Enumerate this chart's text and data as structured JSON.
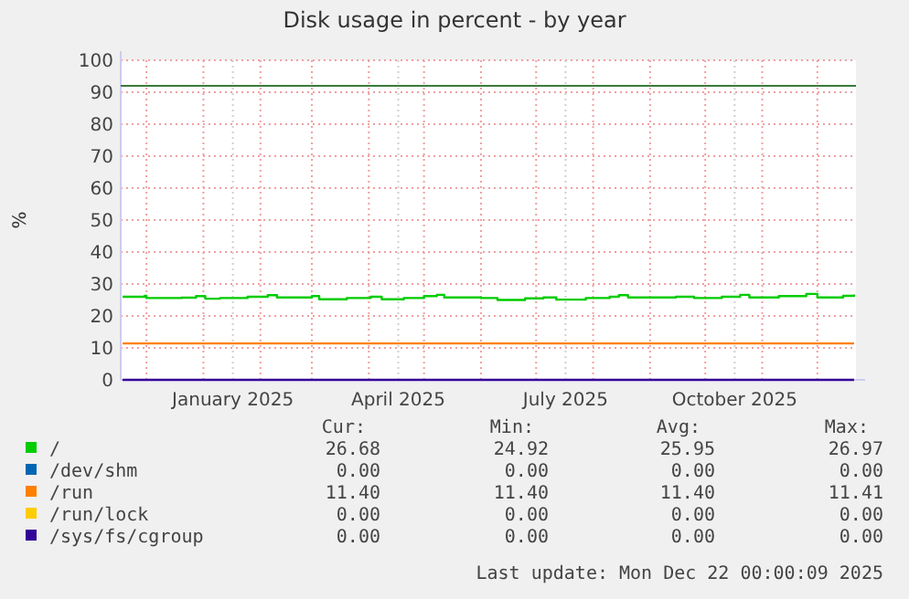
{
  "chart_data": {
    "type": "line",
    "title": "Disk usage in percent - by year",
    "ylabel": "%",
    "xlim": [
      "2024-11-17",
      "2025-12-22"
    ],
    "xticks": [
      {
        "value": "2024-12-01",
        "label": null
      },
      {
        "value": "2025-01-01",
        "label": null
      },
      {
        "value": "2025-01-17",
        "label": "January 2025"
      },
      {
        "value": "2025-02-01",
        "label": null
      },
      {
        "value": "2025-03-01",
        "label": null
      },
      {
        "value": "2025-04-01",
        "label": null
      },
      {
        "value": "2025-04-17",
        "label": "April 2025"
      },
      {
        "value": "2025-05-01",
        "label": null
      },
      {
        "value": "2025-06-01",
        "label": null
      },
      {
        "value": "2025-07-01",
        "label": null
      },
      {
        "value": "2025-07-17",
        "label": "July 2025"
      },
      {
        "value": "2025-08-01",
        "label": null
      },
      {
        "value": "2025-09-01",
        "label": null
      },
      {
        "value": "2025-10-01",
        "label": null
      },
      {
        "value": "2025-10-17",
        "label": "October 2025"
      },
      {
        "value": "2025-11-01",
        "label": null
      },
      {
        "value": "2025-12-01",
        "label": null
      }
    ],
    "ylim": [
      0,
      100
    ],
    "yticks": [
      0,
      10,
      20,
      30,
      40,
      50,
      60,
      70,
      80,
      90,
      100
    ],
    "grid": true,
    "legend": "bottom",
    "marker": "none",
    "line_style": "solid",
    "ref_lines": [
      {
        "axis": "y",
        "value": 92,
        "color": "#3a7a3a"
      }
    ],
    "series": [
      {
        "name": "/",
        "color": "#00cc00",
        "x": [
          "2024-11-18",
          "2024-11-30",
          "2024-12-01",
          "2024-12-20",
          "2024-12-28",
          "2025-01-02",
          "2025-01-10",
          "2025-01-25",
          "2025-02-05",
          "2025-02-10",
          "2025-03-01",
          "2025-03-05",
          "2025-03-20",
          "2025-04-02",
          "2025-04-08",
          "2025-04-20",
          "2025-05-01",
          "2025-05-08",
          "2025-05-12",
          "2025-06-01",
          "2025-06-10",
          "2025-06-25",
          "2025-07-05",
          "2025-07-12",
          "2025-07-28",
          "2025-08-10",
          "2025-08-15",
          "2025-08-20",
          "2025-09-15",
          "2025-09-25",
          "2025-10-10",
          "2025-10-20",
          "2025-10-25",
          "2025-11-10",
          "2025-11-25",
          "2025-12-01",
          "2025-12-15",
          "2025-12-21"
        ],
        "values": [
          26.0,
          26.3,
          25.6,
          25.7,
          26.2,
          25.4,
          25.6,
          26.0,
          26.5,
          25.8,
          26.2,
          25.2,
          25.6,
          26.0,
          25.2,
          25.6,
          26.2,
          26.6,
          25.8,
          25.6,
          25.0,
          25.5,
          25.8,
          25.1,
          25.6,
          26.0,
          26.5,
          25.8,
          26.0,
          25.6,
          26.0,
          26.6,
          25.8,
          26.2,
          26.9,
          25.8,
          26.3,
          26.7
        ]
      },
      {
        "name": "/dev/shm",
        "color": "#0066b3"
      },
      {
        "name": "/run",
        "color": "#ff8000",
        "x": [
          "2024-11-18",
          "2025-12-21"
        ],
        "values": [
          11.4,
          11.4
        ]
      },
      {
        "name": "/run/lock",
        "color": "#ffcc00"
      },
      {
        "name": "/sys/fs/cgroup",
        "color": "#330099",
        "x": [
          "2024-11-18",
          "2025-12-21"
        ],
        "values": [
          0,
          0
        ]
      }
    ],
    "annotations": [
      "Cur:",
      "Min:",
      "Avg:",
      "Max:",
      "26.68",
      "24.92",
      "25.95",
      "26.97",
      "0.00",
      "0.00",
      "0.00",
      "0.00",
      "11.40",
      "11.40",
      "11.40",
      "11.41",
      "0.00",
      "0.00",
      "0.00",
      "0.00",
      "0.00",
      "0.00",
      "0.00",
      "0.00",
      "Last update: Mon Dec 22 00:00:09 2025"
    ]
  }
}
